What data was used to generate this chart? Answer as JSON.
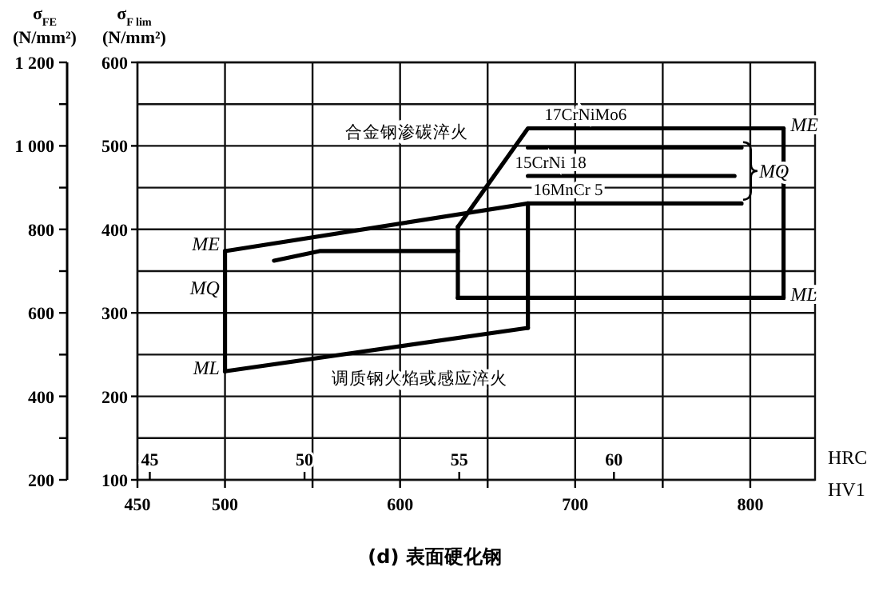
{
  "chart_data": {
    "type": "line",
    "xlabel": "HV1",
    "x2label": "HRC",
    "ylabel": "σ$_{FE}$ (N/mm²)",
    "y2label": "σ$_{F lim}$ (N/mm²)",
    "xlim": [
      450,
      837
    ],
    "xticks": [
      450,
      500,
      {
        "value": 550,
        "label": null
      },
      600,
      {
        "value": 650,
        "label": null
      },
      700,
      {
        "value": 750,
        "label": null
      },
      800
    ],
    "x2lim": [
      44.6,
      66.5
    ],
    "x2ticks": [
      45,
      50,
      55,
      60
    ],
    "ylim": [
      200,
      1200
    ],
    "yticks": [
      200,
      {
        "value": 300,
        "label": null
      },
      400,
      {
        "value": 500,
        "label": null
      },
      600,
      {
        "value": 700,
        "label": null
      },
      800,
      {
        "value": 900,
        "label": null
      },
      {
        "value": 1000,
        "label": "1 000"
      },
      {
        "value": 1100,
        "label": null
      },
      {
        "value": 1200,
        "label": "1 200"
      }
    ],
    "y2lim": [
      100,
      600
    ],
    "y2ticks": [
      100,
      200,
      300,
      400,
      500,
      600
    ],
    "grid": true,
    "series": [
      {
        "color": "#000000",
        "x": [
          500,
          673,
          795
        ],
        "values": [
          748,
          862,
          862
        ],
        "errors": [
          [
            460,
            748
          ],
          [
            564,
            862
          ],
          null
        ]
      },
      {
        "color": "#000000",
        "x": [
          500,
          673
        ],
        "values": [
          460,
          564
        ]
      },
      {
        "color": "#000000",
        "x": [
          528,
          554,
          633
        ],
        "values": [
          725,
          748,
          748
        ]
      },
      {
        "color": "#000000",
        "x": [
          633,
          673,
          819
        ],
        "values": [
          806,
          1042,
          1042
        ],
        "errors": [
          [
            636,
            806
          ],
          null,
          [
            636,
            1042
          ]
        ]
      },
      {
        "color": "#000000",
        "x": [
          633,
          819
        ],
        "values": [
          636,
          636
        ]
      },
      {
        "color": "#000000",
        "x": [
          673,
          795
        ],
        "values": [
          996,
          996
        ]
      },
      {
        "color": "#000000",
        "x": [
          673,
          791
        ],
        "values": [
          928,
          928
        ]
      }
    ],
    "annotations": [
      "ME",
      "MQ",
      "ML",
      "ME",
      "MQ",
      "ML",
      "17CrNiMo6",
      "15CrNi 18",
      "16MnCr 5",
      "合金钢渗碳淬火",
      "调质钢火焰或感应淬火",
      "(d) 表面硬化钢"
    ]
  }
}
